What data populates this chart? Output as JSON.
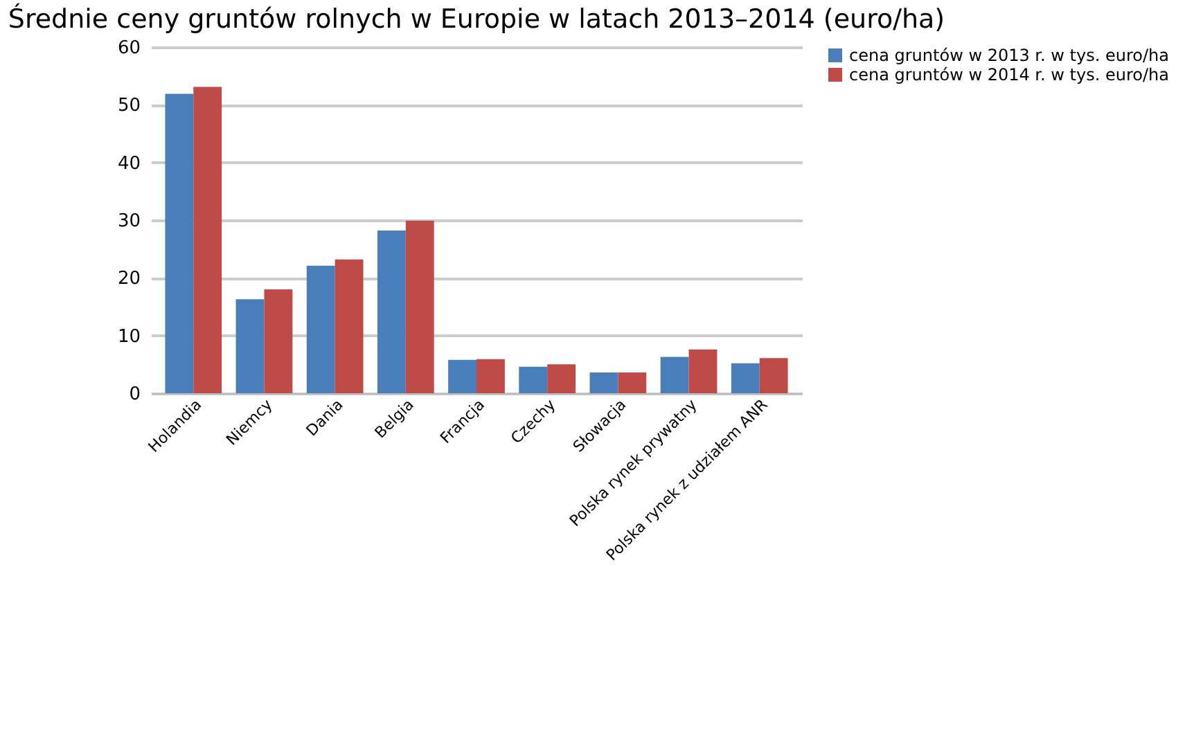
{
  "chart_data": {
    "type": "bar",
    "title": "Średnie ceny gruntów rolnych w Europie w latach 2013–2014 (euro/ha)",
    "categories": [
      "Holandia",
      "Niemcy",
      "Dania",
      "Belgia",
      "Francja",
      "Czechy",
      "Słowacja",
      "Polska rynek prywatny",
      "Polska rynek z udziałem ANR"
    ],
    "series": [
      {
        "name": "cena gruntów w 2013 r. w tys. euro/ha",
        "color": "#4a7ebb",
        "values": [
          51.9,
          16.3,
          22.1,
          28.2,
          5.8,
          4.6,
          3.6,
          6.3,
          5.2
        ]
      },
      {
        "name": "cena gruntów w 2014 r. w tys. euro/ha",
        "color": "#be4b48",
        "values": [
          53.1,
          18.0,
          23.2,
          29.9,
          5.9,
          5.0,
          3.6,
          7.6,
          6.1
        ]
      }
    ],
    "ylim": [
      0,
      60
    ],
    "yticks": [
      0,
      10,
      20,
      30,
      40,
      50,
      60
    ],
    "grid": "y",
    "legend": "right"
  }
}
